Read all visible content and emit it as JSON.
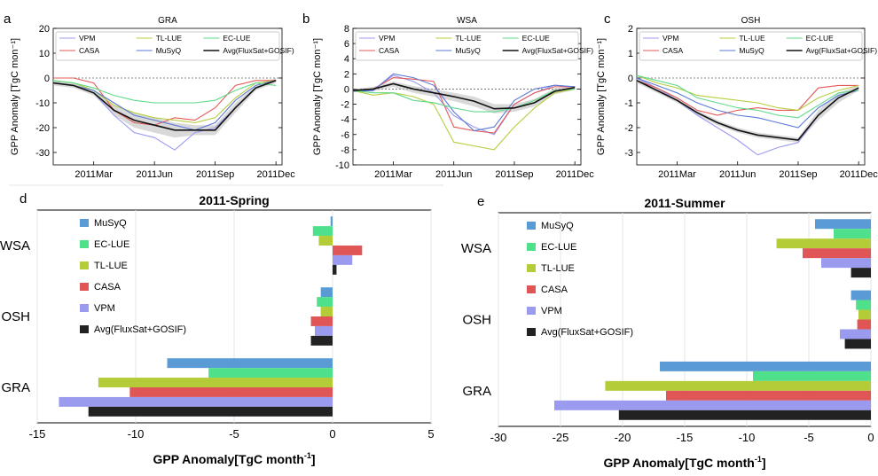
{
  "colors": {
    "VPM": "#9b9bf0",
    "CASA": "#e45858",
    "TL-LUE": "#b7cd3f",
    "MuSyQ": "#5b7ad6",
    "EC-LUE": "#5fd98a",
    "Avg": "#111111",
    "band": "#b9b9b9",
    "bar_MuSyQ": "#5b9bd5",
    "bar_EC-LUE": "#4ee08a",
    "bar_TL-LUE": "#b3cc37",
    "bar_CASA": "#e05555",
    "bar_VPM": "#9a9aee",
    "bar_Avg": "#222222"
  },
  "chart_data": [
    {
      "panel": "a",
      "type": "line",
      "title": "GRA",
      "ylabel": "GPP Anomaly [TgC mon⁻¹]",
      "ylim": [
        -35,
        20
      ],
      "yticks": [
        -30,
        -20,
        -10,
        0,
        10,
        20
      ],
      "xlim": [
        0,
        11.3
      ],
      "xticks": [
        2,
        5,
        8,
        11
      ],
      "xticklabels": [
        "2011Mar",
        "2011Jun",
        "2011Sep",
        "2011Dec"
      ],
      "x": [
        0,
        1,
        2,
        3,
        4,
        5,
        6,
        7,
        8,
        9,
        10,
        11
      ],
      "legend": [
        "VPM",
        "TL-LUE",
        "EC-LUE",
        "CASA",
        "MuSyQ",
        "Avg(FluxSat+GOSIF)"
      ],
      "series": [
        {
          "name": "VPM",
          "color_key": "VPM",
          "values": [
            -2,
            -3,
            -6,
            -15,
            -22,
            -24,
            -29,
            -22,
            -20,
            -12,
            -4,
            -1
          ]
        },
        {
          "name": "CASA",
          "color_key": "CASA",
          "values": [
            0,
            0,
            -2,
            -13,
            -18,
            -19,
            -16,
            -17,
            -12,
            -3,
            -1,
            -1
          ]
        },
        {
          "name": "TL-LUE",
          "color_key": "TL-LUE",
          "values": [
            -1,
            -2,
            -5,
            -11,
            -14,
            -16,
            -17,
            -18,
            -16,
            -8,
            -2,
            -1
          ]
        },
        {
          "name": "MuSyQ",
          "color_key": "MuSyQ",
          "values": [
            -2,
            -3,
            -5,
            -10,
            -15,
            -17,
            -19,
            -21,
            -18,
            -9,
            -3,
            -1
          ]
        },
        {
          "name": "EC-LUE",
          "color_key": "EC-LUE",
          "values": [
            -1,
            -2,
            -4,
            -7,
            -9,
            -10,
            -10,
            -10,
            -9,
            -5,
            -2,
            -3
          ]
        },
        {
          "name": "Avg(FluxSat+GOSIF)",
          "color_key": "Avg",
          "values": [
            -2,
            -3,
            -6,
            -13,
            -17,
            -19,
            -21,
            -21,
            -21,
            -12,
            -4,
            -1
          ]
        }
      ],
      "band_low": [
        -3,
        -4,
        -7,
        -15,
        -20,
        -22,
        -24,
        -23,
        -23,
        -14,
        -5,
        -2
      ],
      "band_high": [
        -1,
        -2,
        -5,
        -11,
        -14,
        -16,
        -18,
        -19,
        -19,
        -10,
        -3,
        0
      ]
    },
    {
      "panel": "b",
      "type": "line",
      "title": "WSA",
      "ylabel": "GPP Anomaly [TgC mon⁻¹]",
      "ylim": [
        -10,
        8
      ],
      "yticks": [
        -10,
        -8,
        -6,
        -4,
        -2,
        0,
        2,
        4,
        6,
        8
      ],
      "xlim": [
        0,
        11.3
      ],
      "xticks": [
        2,
        5,
        8,
        11
      ],
      "xticklabels": [
        "2011Mar",
        "2011Jun",
        "2011Sep",
        "2011Dec"
      ],
      "x": [
        0,
        1,
        2,
        3,
        4,
        5,
        6,
        7,
        8,
        9,
        10,
        11
      ],
      "legend": [
        "VPM",
        "TL-LUE",
        "EC-LUE",
        "CASA",
        "MuSyQ",
        "Avg(FluxSat+GOSIF)"
      ],
      "series": [
        {
          "name": "VPM",
          "color_key": "VPM",
          "values": [
            -0.3,
            -0.1,
            1.8,
            1.0,
            -0.5,
            -3.5,
            -5.0,
            -6.0,
            -2.0,
            -0.5,
            0.5,
            0.3
          ]
        },
        {
          "name": "CASA",
          "color_key": "CASA",
          "values": [
            -0.3,
            0.0,
            1.5,
            1.3,
            1.0,
            -5.0,
            -5.5,
            -5.8,
            -2.0,
            -0.5,
            0.3,
            0.3
          ]
        },
        {
          "name": "TL-LUE",
          "color_key": "TL-LUE",
          "values": [
            -0.2,
            -0.8,
            -0.5,
            -1.0,
            -2.0,
            -7.0,
            -7.5,
            -8.0,
            -5.0,
            -2.5,
            -0.5,
            0.0
          ]
        },
        {
          "name": "MuSyQ",
          "color_key": "MuSyQ",
          "values": [
            -0.3,
            -0.2,
            2.0,
            1.5,
            0.5,
            -3.0,
            -5.5,
            -5.0,
            -1.5,
            0.0,
            0.5,
            0.3
          ]
        },
        {
          "name": "EC-LUE",
          "color_key": "EC-LUE",
          "values": [
            -0.2,
            -0.5,
            -0.5,
            -1.5,
            -1.8,
            -2.5,
            -3.0,
            -3.0,
            -2.5,
            -1.5,
            -0.2,
            0.0
          ]
        },
        {
          "name": "Avg(FluxSat+GOSIF)",
          "color_key": "Avg",
          "values": [
            -0.2,
            0.0,
            0.7,
            0.0,
            -0.5,
            -1.0,
            -1.6,
            -2.6,
            -2.5,
            -1.8,
            -0.3,
            0.2
          ]
        }
      ],
      "band_low": [
        -0.4,
        -0.3,
        0.3,
        -0.5,
        -1.0,
        -1.6,
        -2.3,
        -3.2,
        -3.0,
        -2.3,
        -0.7,
        -0.1
      ],
      "band_high": [
        0.0,
        0.3,
        1.0,
        0.4,
        0.0,
        -0.5,
        -1.0,
        -2.0,
        -2.0,
        -1.3,
        0.1,
        0.4
      ]
    },
    {
      "panel": "c",
      "type": "line",
      "title": "OSH",
      "ylabel": "GPP Anomaly [TgC mon⁻¹]",
      "ylim": [
        -3.5,
        2
      ],
      "yticks": [
        -3,
        -2,
        -1,
        0,
        1,
        2
      ],
      "xlim": [
        0,
        11.3
      ],
      "xticks": [
        2,
        5,
        8,
        11
      ],
      "xticklabels": [
        "2011Mar",
        "2011Jun",
        "2011Sep",
        "2011Dec"
      ],
      "x": [
        0,
        1,
        2,
        3,
        4,
        5,
        6,
        7,
        8,
        9,
        10,
        11
      ],
      "legend": [
        "VPM",
        "TL-LUE",
        "EC-LUE",
        "CASA",
        "MuSyQ",
        "Avg(FluxSat+GOSIF)"
      ],
      "series": [
        {
          "name": "VPM",
          "color_key": "VPM",
          "values": [
            0.0,
            -0.4,
            -0.9,
            -1.5,
            -2.0,
            -2.5,
            -3.1,
            -2.8,
            -2.6,
            -1.5,
            -0.8,
            -0.4
          ]
        },
        {
          "name": "CASA",
          "color_key": "CASA",
          "values": [
            -0.1,
            -0.4,
            -0.8,
            -1.3,
            -1.5,
            -1.3,
            -1.2,
            -1.3,
            -1.3,
            -0.4,
            -0.3,
            -0.3
          ]
        },
        {
          "name": "TL-LUE",
          "color_key": "TL-LUE",
          "values": [
            0.1,
            -0.2,
            -0.4,
            -0.7,
            -0.8,
            -0.9,
            -1.0,
            -1.2,
            -1.3,
            -0.8,
            -0.5,
            -0.3
          ]
        },
        {
          "name": "MuSyQ",
          "color_key": "MuSyQ",
          "values": [
            0.0,
            -0.3,
            -0.6,
            -1.0,
            -1.3,
            -1.5,
            -1.6,
            -1.8,
            -2.0,
            -1.2,
            -0.7,
            -0.5
          ]
        },
        {
          "name": "EC-LUE",
          "color_key": "EC-LUE",
          "values": [
            0.1,
            -0.1,
            -0.3,
            -0.8,
            -1.0,
            -1.2,
            -1.3,
            -1.5,
            -1.6,
            -1.1,
            -0.6,
            -0.5
          ]
        },
        {
          "name": "Avg(FluxSat+GOSIF)",
          "color_key": "Avg",
          "values": [
            -0.1,
            -0.5,
            -0.9,
            -1.4,
            -1.8,
            -2.1,
            -2.3,
            -2.4,
            -2.5,
            -1.5,
            -0.8,
            -0.4
          ]
        }
      ],
      "band_low": [
        -0.2,
        -0.6,
        -1.0,
        -1.5,
        -1.9,
        -2.2,
        -2.4,
        -2.5,
        -2.6,
        -1.7,
        -1.0,
        -0.5
      ],
      "band_high": [
        0.0,
        -0.4,
        -0.8,
        -1.3,
        -1.7,
        -2.0,
        -2.2,
        -2.3,
        -2.4,
        -1.3,
        -0.6,
        -0.3
      ]
    },
    {
      "panel": "d",
      "type": "bar",
      "orientation": "horizontal",
      "title": "2011-Spring",
      "xlabel": "GPP Anomaly[TgC  month",
      "xlabel_sup": "-1",
      "xlabel_end": "]",
      "xlim": [
        -15,
        5
      ],
      "xticks": [
        -15,
        -10,
        -5,
        0,
        5
      ],
      "xticklabels": [
        "-15",
        "-10",
        "-5",
        "0",
        "5"
      ],
      "categories": [
        "WSA",
        "OSH",
        "GRA"
      ],
      "legend": [
        "MuSyQ",
        "EC-LUE",
        "TL-LUE",
        "CASA",
        "VPM",
        "Avg(FluxSat+GOSIF)"
      ],
      "series": [
        {
          "name": "MuSyQ",
          "color_key": "bar_MuSyQ",
          "values": [
            -0.1,
            -0.6,
            -8.4
          ]
        },
        {
          "name": "EC-LUE",
          "color_key": "bar_EC-LUE",
          "values": [
            -1.0,
            -0.8,
            -6.3
          ]
        },
        {
          "name": "TL-LUE",
          "color_key": "bar_TL-LUE",
          "values": [
            -0.7,
            -0.6,
            -11.9
          ]
        },
        {
          "name": "CASA",
          "color_key": "bar_CASA",
          "values": [
            1.5,
            -1.1,
            -10.3
          ]
        },
        {
          "name": "VPM",
          "color_key": "bar_VPM",
          "values": [
            1.0,
            -0.9,
            -13.9
          ]
        },
        {
          "name": "Avg(FluxSat+GOSIF)",
          "color_key": "bar_Avg",
          "values": [
            0.2,
            -1.1,
            -12.4
          ]
        }
      ]
    },
    {
      "panel": "e",
      "type": "bar",
      "orientation": "horizontal",
      "title": "2011-Summer",
      "xlabel": "GPP Anomaly[TgC  month",
      "xlabel_sup": "-1",
      "xlabel_end": "]",
      "xlim": [
        -30,
        0
      ],
      "xticks": [
        -30,
        -25,
        -20,
        -15,
        -10,
        -5,
        0
      ],
      "xticklabels": [
        "-30",
        "-25",
        "-20",
        "-15",
        "-10",
        "-5",
        "0"
      ],
      "categories": [
        "WSA",
        "OSH",
        "GRA"
      ],
      "legend": [
        "MuSyQ",
        "EC-LUE",
        "TL-LUE",
        "CASA",
        "VPM",
        "Avg(FluxSat+GOSIF)"
      ],
      "series": [
        {
          "name": "MuSyQ",
          "color_key": "bar_MuSyQ",
          "values": [
            -4.5,
            -1.6,
            -17.0
          ]
        },
        {
          "name": "EC-LUE",
          "color_key": "bar_EC-LUE",
          "values": [
            -3.0,
            -1.2,
            -9.5
          ]
        },
        {
          "name": "TL-LUE",
          "color_key": "bar_TL-LUE",
          "values": [
            -7.6,
            -1.0,
            -21.4
          ]
        },
        {
          "name": "CASA",
          "color_key": "bar_CASA",
          "values": [
            -5.5,
            -1.1,
            -16.5
          ]
        },
        {
          "name": "VPM",
          "color_key": "bar_VPM",
          "values": [
            -4.0,
            -2.5,
            -25.5
          ]
        },
        {
          "name": "Avg(FluxSat+GOSIF)",
          "color_key": "bar_Avg",
          "values": [
            -1.6,
            -2.1,
            -20.3
          ]
        }
      ]
    }
  ]
}
